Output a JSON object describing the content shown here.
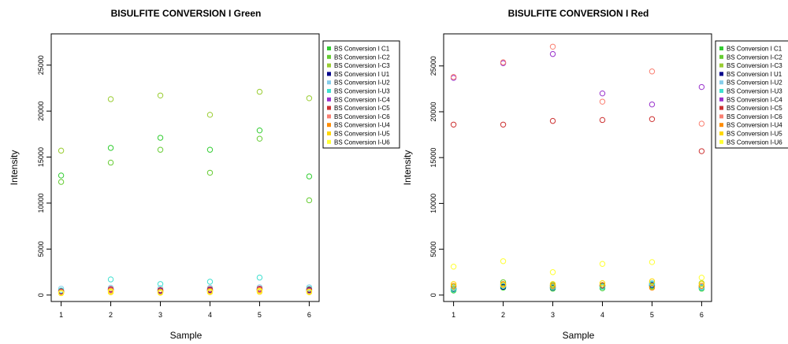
{
  "chart_data": [
    {
      "type": "scatter",
      "title": "BISULFITE CONVERSION I Green",
      "xlabel": "Sample",
      "ylabel": "Intensity",
      "x": [
        1,
        2,
        3,
        4,
        5,
        6
      ],
      "xlim": [
        0.8,
        6.2
      ],
      "ylim": [
        -700,
        28400
      ],
      "yticks": [
        0,
        5000,
        10000,
        15000,
        20000,
        25000
      ],
      "legend_position": "right",
      "series": [
        {
          "name": "BS Conversion I C1",
          "color": "#32cd32",
          "values": [
            13000,
            16000,
            17100,
            15800,
            17900,
            12900
          ]
        },
        {
          "name": "BS Conversion I-C2",
          "color": "#66cc33",
          "values": [
            12300,
            14400,
            15800,
            13300,
            17000,
            10300
          ]
        },
        {
          "name": "BS Conversion I-C3",
          "color": "#9acd32",
          "values": [
            15700,
            21300,
            21700,
            19600,
            22100,
            21400
          ]
        },
        {
          "name": "BS Conversion I U1",
          "color": "#00008b",
          "values": [
            450,
            600,
            500,
            550,
            600,
            550
          ]
        },
        {
          "name": "BS Conversion I-U2",
          "color": "#87ceeb",
          "values": [
            700,
            800,
            750,
            800,
            850,
            850
          ]
        },
        {
          "name": "BS Conversion I-U3",
          "color": "#40e0d0",
          "values": [
            500,
            1700,
            1200,
            1450,
            1900,
            700
          ]
        },
        {
          "name": "BS Conversion I-C4",
          "color": "#9932cc",
          "values": [
            350,
            550,
            400,
            500,
            600,
            450
          ]
        },
        {
          "name": "BS Conversion I-C5",
          "color": "#cd3333",
          "values": [
            400,
            650,
            550,
            650,
            700,
            600
          ]
        },
        {
          "name": "BS Conversion I-C6",
          "color": "#fa8072",
          "values": [
            300,
            500,
            350,
            450,
            550,
            400
          ]
        },
        {
          "name": "BS Conversion I-U4",
          "color": "#ff8c00",
          "values": [
            250,
            450,
            350,
            450,
            500,
            400
          ]
        },
        {
          "name": "BS Conversion I-U5",
          "color": "#ffd700",
          "values": [
            200,
            300,
            250,
            300,
            350,
            300
          ]
        },
        {
          "name": "BS Conversion I-U6",
          "color": "#ffff33",
          "values": [
            250,
            400,
            300,
            350,
            450,
            350
          ]
        }
      ]
    },
    {
      "type": "scatter",
      "title": "BISULFITE CONVERSION I Red",
      "xlabel": "Sample",
      "ylabel": "Intensity",
      "x": [
        1,
        2,
        3,
        4,
        5,
        6
      ],
      "xlim": [
        0.8,
        6.2
      ],
      "ylim": [
        -700,
        28500
      ],
      "yticks": [
        0,
        5000,
        10000,
        15000,
        20000,
        25000
      ],
      "legend_position": "right",
      "series": [
        {
          "name": "BS Conversion I C1",
          "color": "#32cd32",
          "values": [
            500,
            800,
            700,
            750,
            1000,
            700
          ]
        },
        {
          "name": "BS Conversion I-C2",
          "color": "#66cc33",
          "values": [
            700,
            1400,
            1100,
            900,
            1300,
            1000
          ]
        },
        {
          "name": "BS Conversion I-C3",
          "color": "#9acd32",
          "values": [
            900,
            1100,
            900,
            1000,
            900,
            1300
          ]
        },
        {
          "name": "BS Conversion I U1",
          "color": "#00008b",
          "values": [
            650,
            900,
            800,
            1050,
            1100,
            850
          ]
        },
        {
          "name": "BS Conversion I-U2",
          "color": "#87ceeb",
          "values": [
            800,
            1200,
            1000,
            1100,
            1300,
            900
          ]
        },
        {
          "name": "BS Conversion I-U3",
          "color": "#40e0d0",
          "values": [
            600,
            1000,
            850,
            900,
            1200,
            800
          ]
        },
        {
          "name": "BS Conversion I-C4",
          "color": "#9932cc",
          "values": [
            23700,
            25300,
            26300,
            22000,
            20800,
            22700
          ]
        },
        {
          "name": "BS Conversion I-C5",
          "color": "#cd3333",
          "values": [
            18600,
            18600,
            19000,
            19100,
            19200,
            15700
          ]
        },
        {
          "name": "BS Conversion I-C6",
          "color": "#fa8072",
          "values": [
            23800,
            25400,
            27100,
            21100,
            24400,
            18700
          ]
        },
        {
          "name": "BS Conversion I-U4",
          "color": "#ff8c00",
          "values": [
            1000,
            1200,
            1000,
            1100,
            800,
            1000
          ]
        },
        {
          "name": "BS Conversion I-U5",
          "color": "#ffd700",
          "values": [
            1200,
            1100,
            1200,
            1300,
            1500,
            1200
          ]
        },
        {
          "name": "BS Conversion I-U6",
          "color": "#ffff33",
          "values": [
            3100,
            3700,
            2500,
            3400,
            3600,
            1900
          ]
        }
      ]
    }
  ]
}
